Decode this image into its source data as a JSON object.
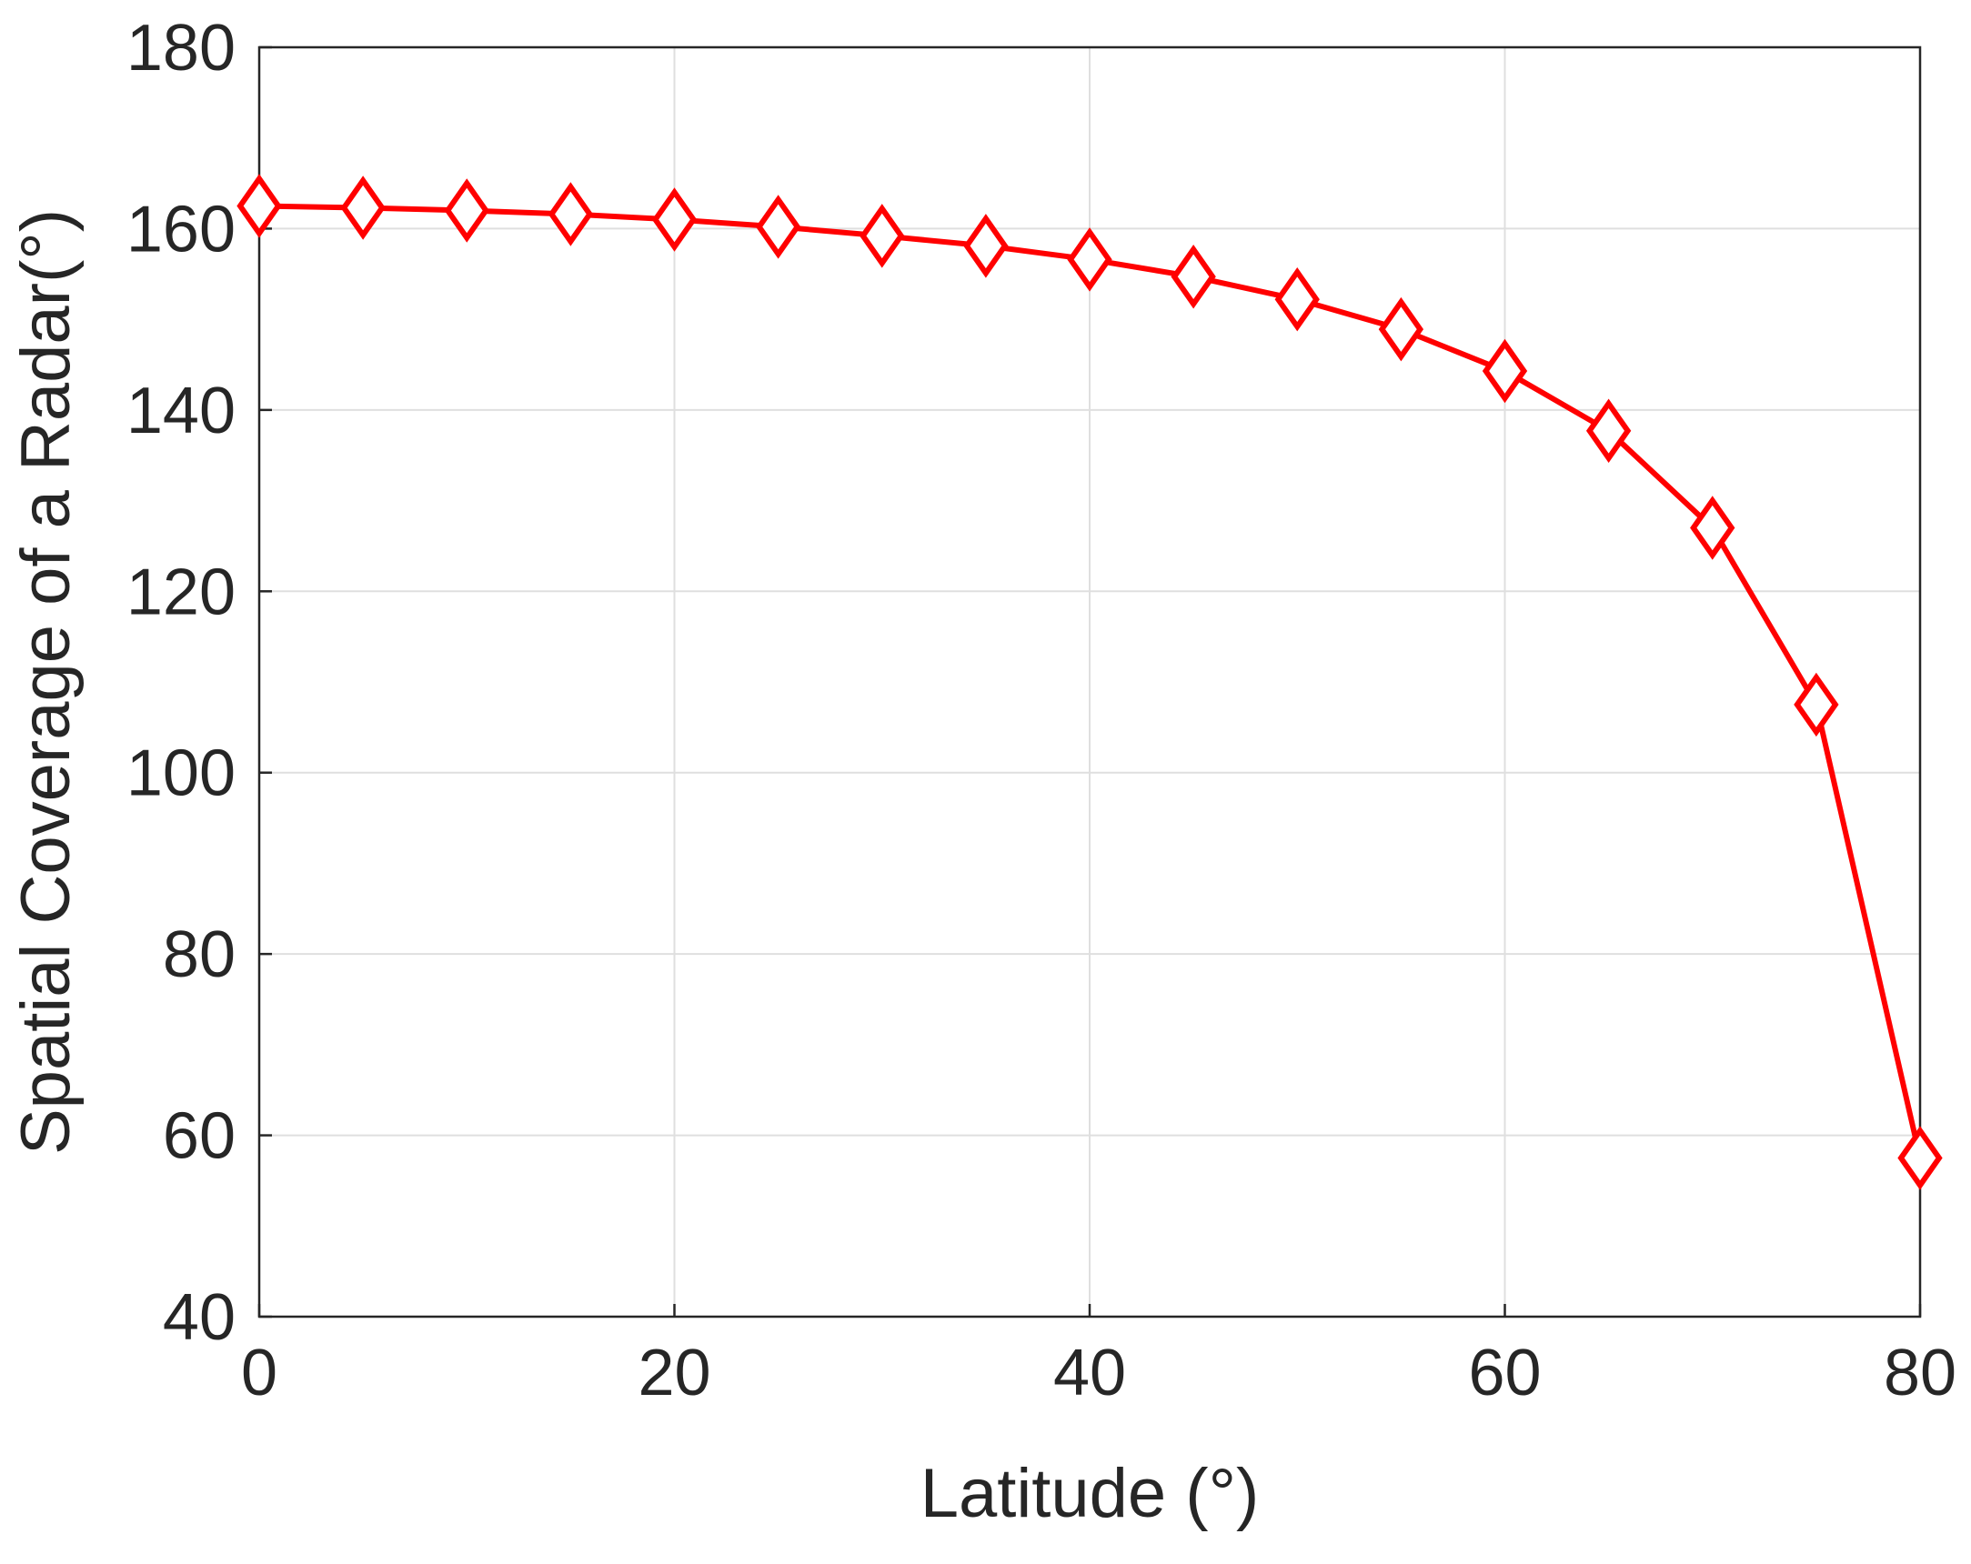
{
  "chart_data": {
    "type": "line",
    "title": "",
    "xlabel": "Latitude  (°)",
    "ylabel": "Spatial Coverage of a Radar(°)",
    "xlim": [
      0,
      80
    ],
    "ylim": [
      40,
      180
    ],
    "xticks": [
      0,
      20,
      40,
      60,
      80
    ],
    "yticks": [
      40,
      60,
      80,
      100,
      120,
      140,
      160,
      180
    ],
    "grid": true,
    "legend": "none",
    "series": [
      {
        "color": "#ff0000",
        "marker": "diamond",
        "x": [
          0,
          5,
          10,
          15,
          20,
          25,
          30,
          35,
          40,
          45,
          50,
          55,
          60,
          65,
          70,
          75,
          80
        ],
        "y": [
          162.5,
          162.3,
          162.0,
          161.6,
          161.0,
          160.2,
          159.2,
          158.1,
          156.6,
          154.7,
          152.2,
          148.9,
          144.3,
          137.7,
          127.0,
          107.5,
          57.5
        ]
      }
    ]
  }
}
